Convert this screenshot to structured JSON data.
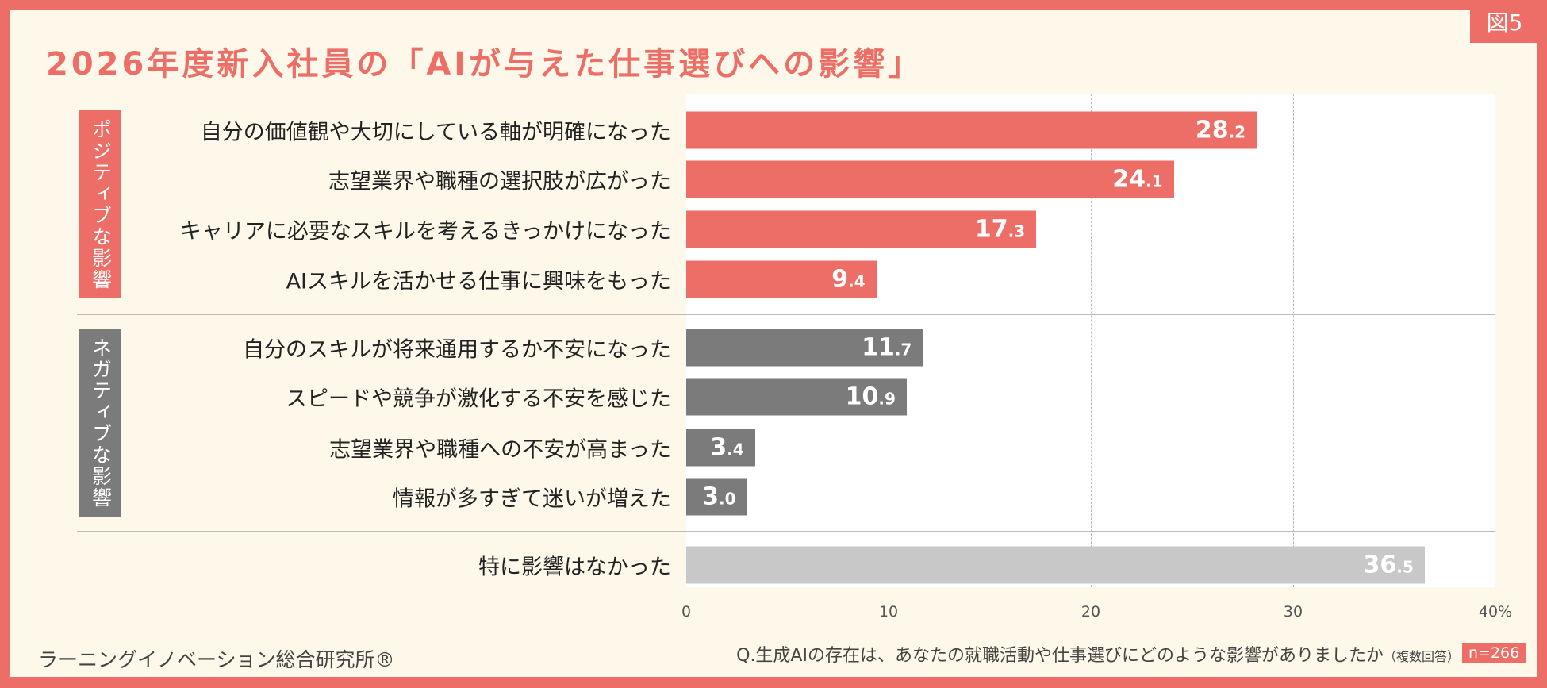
{
  "badge": "図5",
  "title": "2026年度新入社員の「AIが与えた仕事選びへの影響」",
  "groups": {
    "positive": "ポジティブな影響",
    "negative": "ネガティブな影響"
  },
  "colors": {
    "positive": "#ec6e67",
    "negative": "#7b7b7b",
    "none": "#c8c8c8",
    "background": "#fdf8e9"
  },
  "chart_data": {
    "type": "bar",
    "orientation": "horizontal",
    "categories": [
      "自分の価値観や大切にしている軸が明確になった",
      "志望業界や職種の選択肢が広がった",
      "キャリアに必要なスキルを考えるきっかけになった",
      "AIスキルを活かせる仕事に興味をもった",
      "自分のスキルが将来通用するか不安になった",
      "スピードや競争が激化する不安を感じた",
      "志望業界や職種への不安が高まった",
      "情報が多すぎて迷いが増えた",
      "特に影響はなかった"
    ],
    "values": [
      28.2,
      24.1,
      17.3,
      9.4,
      11.7,
      10.9,
      3.4,
      3.0,
      36.5
    ],
    "group": [
      "positive",
      "positive",
      "positive",
      "positive",
      "negative",
      "negative",
      "negative",
      "negative",
      "none"
    ],
    "xlim": [
      0,
      40
    ],
    "ticks": [
      "0",
      "10",
      "20",
      "30",
      "40%"
    ],
    "grid": true
  },
  "footer": {
    "source": "ラーニングイノベーション総合研究所®",
    "question": "Q.生成AIの存在は、あなたの就職活動や仕事選びにどのような影響がありましたか",
    "question_note": "（複数回答）",
    "n": "n=266"
  }
}
